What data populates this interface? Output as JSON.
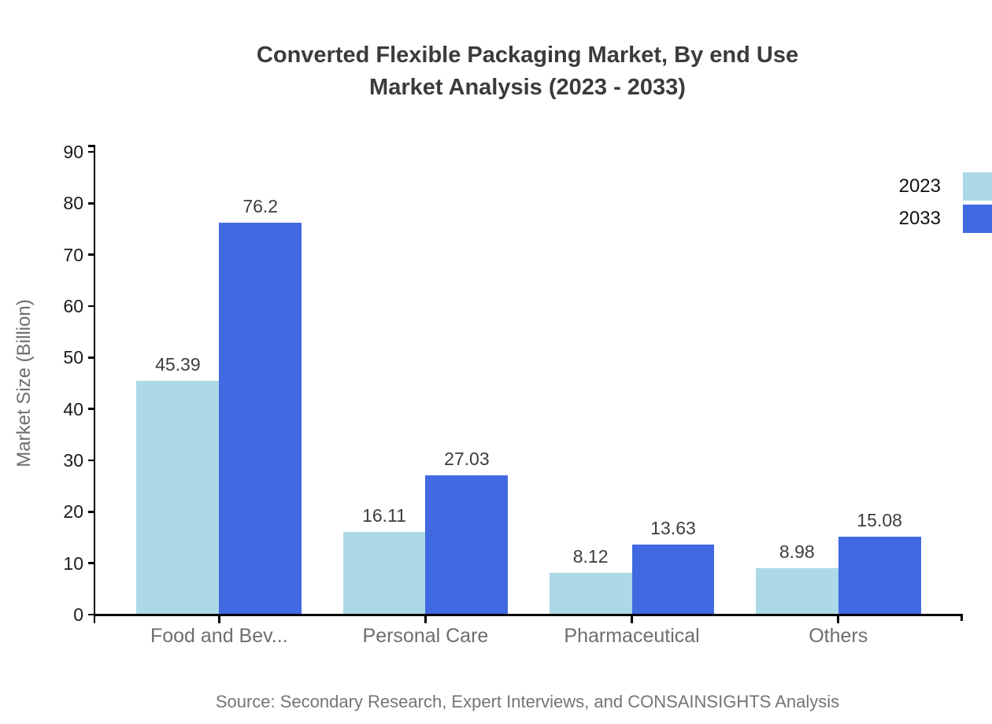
{
  "chart_data": {
    "type": "bar",
    "title_line1": "Converted Flexible Packaging Market, By end Use",
    "title_line2": "Market Analysis (2023 - 2033)",
    "categories": [
      "Food and Bev...",
      "Personal Care",
      "Pharmaceutical",
      "Others"
    ],
    "series": [
      {
        "name": "2023",
        "color": "#ADD8E6",
        "values": [
          45.39,
          16.11,
          8.12,
          8.98
        ]
      },
      {
        "name": "2033",
        "color": "#4169E1",
        "values": [
          76.2,
          27.03,
          13.63,
          15.08
        ]
      }
    ],
    "xlabel": "",
    "ylabel": "Market Size (Billion)",
    "ylim": [
      0,
      90
    ],
    "yticks": [
      0,
      10,
      20,
      30,
      40,
      50,
      60,
      70,
      80,
      90
    ],
    "grid": false,
    "legend_position": "top-right",
    "value_labels": true
  },
  "source_note": "Source: Secondary Research, Expert Interviews, and CONSAINSIGHTS Analysis",
  "colors": {
    "series_2023": "#ADD8E6",
    "series_2033": "#4169E1",
    "title_text": "#3b3b3b",
    "axis_line": "#000000",
    "y_tick_text": "#1a1a1a",
    "category_text": "#6e6e6e",
    "value_label_text": "#3d3d3d",
    "source_text": "#757575",
    "background": "#ffffff"
  }
}
